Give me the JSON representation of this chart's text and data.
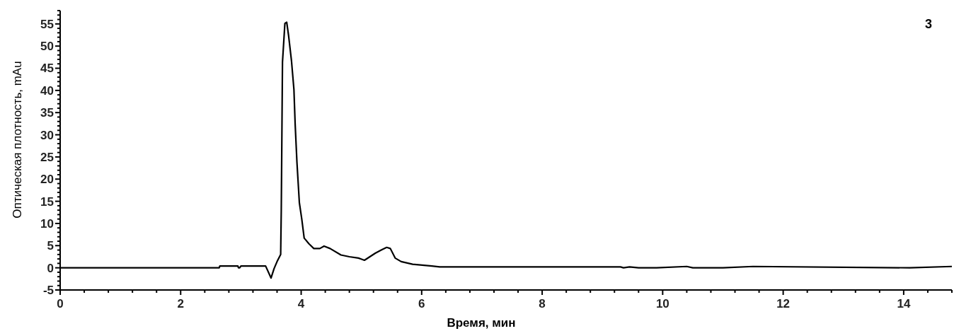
{
  "chart_data": {
    "type": "line",
    "xlabel": "Время, мин",
    "ylabel": "Оптическая плотность, mAu",
    "annotations": [
      "3"
    ],
    "x": [
      0,
      2.64,
      2.65,
      2.95,
      2.96,
      2.98,
      3.0,
      3.41,
      3.5,
      3.55,
      3.6,
      3.66,
      3.67,
      3.69,
      3.73,
      3.76,
      3.79,
      3.84,
      3.88,
      3.9,
      3.93,
      3.97,
      4.01,
      4.05,
      4.13,
      4.21,
      4.31,
      4.38,
      4.48,
      4.66,
      4.8,
      4.95,
      5.05,
      5.23,
      5.34,
      5.42,
      5.48,
      5.56,
      5.66,
      5.85,
      6.17,
      6.3,
      9.3,
      9.35,
      9.45,
      9.6,
      9.9,
      10.4,
      10.5,
      11.0,
      11.5,
      14.1,
      14.8
    ],
    "series": [
      {
        "color": "#000000",
        "values": [
          0,
          0,
          0.4,
          0.4,
          0,
          0,
          0.4,
          0.4,
          -2.3,
          -0.2,
          1.4,
          3.0,
          13.1,
          46.4,
          55.1,
          55.4,
          52.5,
          46.6,
          40.2,
          32.5,
          23.8,
          14.7,
          11.0,
          6.7,
          5.4,
          4.35,
          4.35,
          4.9,
          4.35,
          2.9,
          2.5,
          2.2,
          1.7,
          3.3,
          4.1,
          4.6,
          4.35,
          2.2,
          1.4,
          0.8,
          0.4,
          0.2,
          0.2,
          0,
          0.2,
          0,
          0,
          0.3,
          0,
          0,
          0.3,
          0,
          0.3
        ]
      }
    ],
    "xlim": [
      0,
      14.8
    ],
    "ylim": [
      -5,
      58
    ],
    "xticks": [
      0,
      {
        "value": 0.4,
        "label": null
      },
      {
        "value": 0.8,
        "label": null
      },
      {
        "value": 1.2,
        "label": null
      },
      {
        "value": 1.6,
        "label": null
      },
      2,
      {
        "value": 2.4,
        "label": null
      },
      {
        "value": 2.8,
        "label": null
      },
      {
        "value": 3.2,
        "label": null
      },
      {
        "value": 3.6,
        "label": null
      },
      4,
      {
        "value": 4.4,
        "label": null
      },
      {
        "value": 4.8,
        "label": null
      },
      {
        "value": 5.2,
        "label": null
      },
      {
        "value": 5.6,
        "label": null
      },
      6,
      {
        "value": 6.4,
        "label": null
      },
      {
        "value": 6.8,
        "label": null
      },
      {
        "value": 7.2,
        "label": null
      },
      {
        "value": 7.6,
        "label": null
      },
      8,
      {
        "value": 8.4,
        "label": null
      },
      {
        "value": 8.8,
        "label": null
      },
      {
        "value": 9.2,
        "label": null
      },
      {
        "value": 9.6,
        "label": null
      },
      10,
      {
        "value": 10.4,
        "label": null
      },
      {
        "value": 10.8,
        "label": null
      },
      {
        "value": 11.2,
        "label": null
      },
      {
        "value": 11.6,
        "label": null
      },
      12,
      {
        "value": 12.4,
        "label": null
      },
      {
        "value": 12.8,
        "label": null
      },
      {
        "value": 13.2,
        "label": null
      },
      {
        "value": 13.6,
        "label": null
      },
      14,
      {
        "value": 14.4,
        "label": null
      },
      {
        "value": 14.8,
        "label": null
      }
    ],
    "yticks": [
      -5,
      {
        "value": -4,
        "label": null
      },
      {
        "value": -3,
        "label": null
      },
      {
        "value": -2,
        "label": null
      },
      {
        "value": -1,
        "label": null
      },
      0,
      {
        "value": 1,
        "label": null
      },
      {
        "value": 2,
        "label": null
      },
      {
        "value": 3,
        "label": null
      },
      {
        "value": 4,
        "label": null
      },
      5,
      {
        "value": 6,
        "label": null
      },
      {
        "value": 7,
        "label": null
      },
      {
        "value": 8,
        "label": null
      },
      {
        "value": 9,
        "label": null
      },
      10,
      {
        "value": 11,
        "label": null
      },
      {
        "value": 12,
        "label": null
      },
      {
        "value": 13,
        "label": null
      },
      {
        "value": 14,
        "label": null
      },
      15,
      {
        "value": 16,
        "label": null
      },
      {
        "value": 17,
        "label": null
      },
      {
        "value": 18,
        "label": null
      },
      {
        "value": 19,
        "label": null
      },
      20,
      {
        "value": 21,
        "label": null
      },
      {
        "value": 22,
        "label": null
      },
      {
        "value": 23,
        "label": null
      },
      {
        "value": 24,
        "label": null
      },
      25,
      {
        "value": 26,
        "label": null
      },
      {
        "value": 27,
        "label": null
      },
      {
        "value": 28,
        "label": null
      },
      {
        "value": 29,
        "label": null
      },
      30,
      {
        "value": 31,
        "label": null
      },
      {
        "value": 32,
        "label": null
      },
      {
        "value": 33,
        "label": null
      },
      {
        "value": 34,
        "label": null
      },
      35,
      {
        "value": 36,
        "label": null
      },
      {
        "value": 37,
        "label": null
      },
      {
        "value": 38,
        "label": null
      },
      {
        "value": 39,
        "label": null
      },
      40,
      {
        "value": 41,
        "label": null
      },
      {
        "value": 42,
        "label": null
      },
      {
        "value": 43,
        "label": null
      },
      {
        "value": 44,
        "label": null
      },
      45,
      {
        "value": 46,
        "label": null
      },
      {
        "value": 47,
        "label": null
      },
      {
        "value": 48,
        "label": null
      },
      {
        "value": 49,
        "label": null
      },
      50,
      {
        "value": 51,
        "label": null
      },
      {
        "value": 52,
        "label": null
      },
      {
        "value": 53,
        "label": null
      },
      {
        "value": 54,
        "label": null
      },
      55,
      {
        "value": 56,
        "label": null
      },
      {
        "value": 57,
        "label": null
      },
      {
        "value": 58,
        "label": null
      }
    ]
  }
}
